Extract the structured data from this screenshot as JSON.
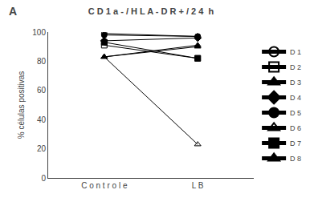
{
  "chart_data": {
    "type": "line",
    "title": "C D 1 a - / H L A - D R + / 2 4  h",
    "y_label": "% células positivas",
    "annotations": [
      {
        "text": "A"
      }
    ],
    "categories": [
      "C o n t r o l e",
      "L B"
    ],
    "series": [
      {
        "name": "D 1",
        "values": [
          99,
          97
        ],
        "marker": "circle-open",
        "color": "black"
      },
      {
        "name": "D 2",
        "values": [
          91,
          82
        ],
        "marker": "square-open",
        "color": "black"
      },
      {
        "name": "D 3",
        "values": [
          83,
          91
        ],
        "marker": "triangle-up",
        "color": "black"
      },
      {
        "name": "D 4",
        "values": [
          94,
          96
        ],
        "marker": "diamond",
        "color": "black"
      },
      {
        "name": "D 5",
        "values": [
          98,
          97
        ],
        "marker": "circle",
        "color": "black"
      },
      {
        "name": "D 6",
        "values": [
          83,
          23
        ],
        "marker": "triangle-up-open",
        "color": "black"
      },
      {
        "name": "D 7",
        "values": [
          93,
          82
        ],
        "marker": "square",
        "color": "black"
      },
      {
        "name": "D 8",
        "values": [
          83,
          90
        ],
        "marker": "triangle-up",
        "color": "black"
      }
    ],
    "ylim": [
      0,
      100
    ],
    "yticks": [
      0,
      20,
      40,
      60,
      80,
      100
    ],
    "grid": false,
    "legend": "right"
  }
}
